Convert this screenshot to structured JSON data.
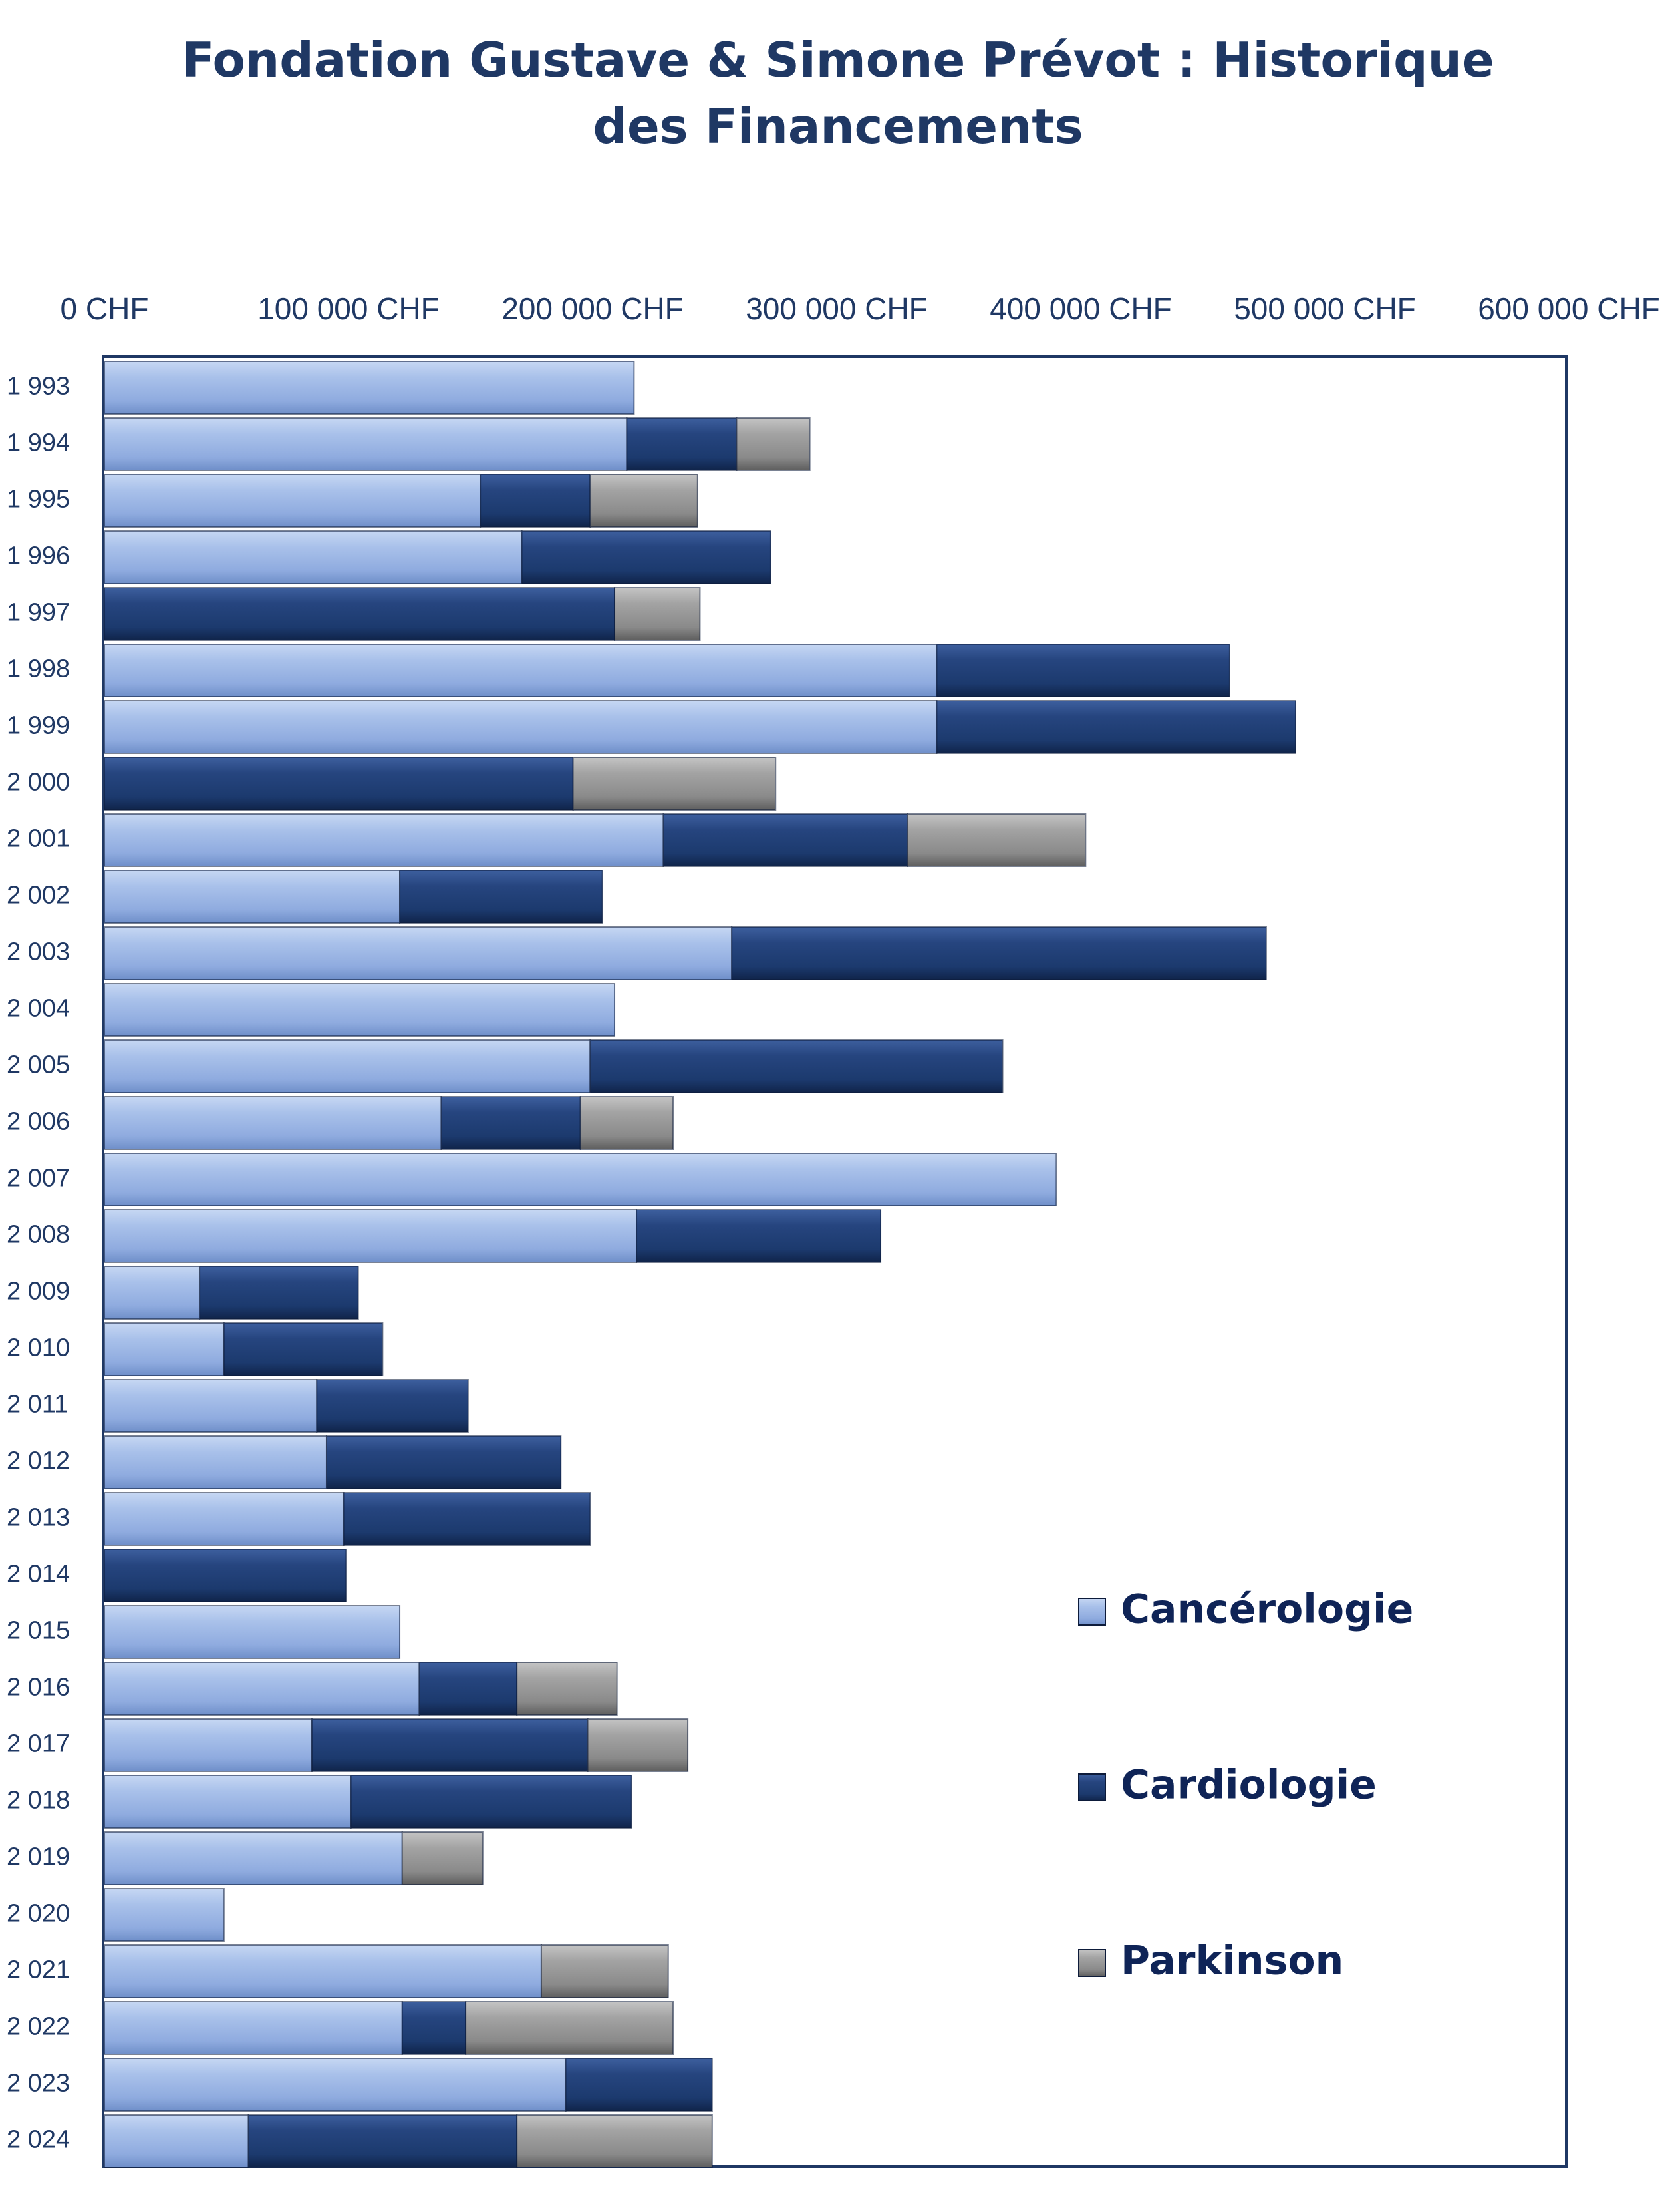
{
  "chart_data": {
    "type": "bar",
    "orientation": "horizontal",
    "stacked": true,
    "title": "Fondation Gustave & Simone Prévot : Historique des Financements",
    "title_lines": [
      "Fondation Gustave & Simone Prévot : Historique",
      "des Financements"
    ],
    "xlabel": "",
    "ylabel": "",
    "xlim": [
      0,
      600000
    ],
    "x_ticks": [
      0,
      100000,
      200000,
      300000,
      400000,
      500000,
      600000
    ],
    "x_tick_labels": [
      "0 CHF",
      "100 000 CHF",
      "200 000 CHF",
      "300 000 CHF",
      "400 000 CHF",
      "500 000 CHF",
      "600 000 CHF"
    ],
    "x_axis_position": "top",
    "grid": false,
    "legend_position": "right",
    "categories": [
      "1 993",
      "1 994",
      "1 995",
      "1 996",
      "1 997",
      "1 998",
      "1 999",
      "2 000",
      "2 001",
      "2 002",
      "2 003",
      "2 004",
      "2 005",
      "2 006",
      "2 007",
      "2 008",
      "2 009",
      "2 010",
      "2 011",
      "2 012",
      "2 013",
      "2 014",
      "2 015",
      "2 016",
      "2 017",
      "2 018",
      "2 019",
      "2 020",
      "2 021",
      "2 022",
      "2 023",
      "2 024"
    ],
    "series": [
      {
        "name": "Cancérologie",
        "color": "#9bb4e4",
        "values": [
          217000,
          214000,
          154000,
          171000,
          0,
          341000,
          341000,
          0,
          229000,
          121000,
          257000,
          209000,
          199000,
          138000,
          390000,
          218000,
          39000,
          49000,
          87000,
          91000,
          98000,
          0,
          121000,
          129000,
          85000,
          101000,
          122000,
          49000,
          179000,
          122000,
          189000,
          59000
        ]
      },
      {
        "name": "Cardiologie",
        "color": "#1f3a70",
        "values": [
          0,
          45000,
          45000,
          102000,
          209000,
          120000,
          147000,
          192000,
          100000,
          83000,
          219000,
          0,
          169000,
          57000,
          0,
          100000,
          65000,
          65000,
          62000,
          96000,
          101000,
          99000,
          0,
          40000,
          113000,
          115000,
          0,
          0,
          0,
          26000,
          60000,
          110000
        ]
      },
      {
        "name": "Parkinson",
        "color": "#8c8c8c",
        "values": [
          0,
          30000,
          44000,
          0,
          35000,
          0,
          0,
          83000,
          73000,
          0,
          0,
          0,
          0,
          38000,
          0,
          0,
          0,
          0,
          0,
          0,
          0,
          0,
          0,
          41000,
          41000,
          0,
          33000,
          0,
          52000,
          85000,
          0,
          80000
        ]
      }
    ]
  }
}
